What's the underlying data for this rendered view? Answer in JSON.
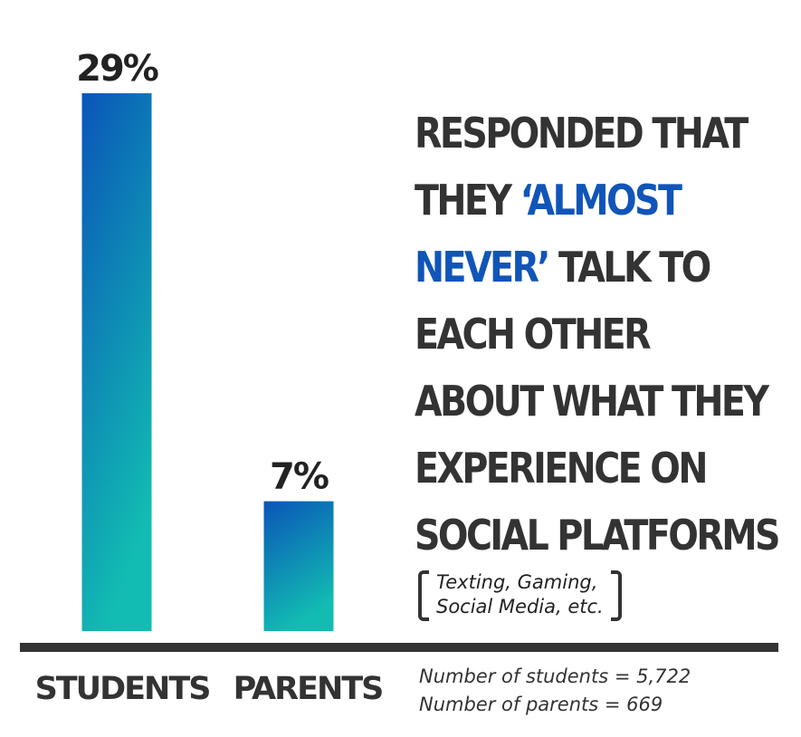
{
  "chart_data": {
    "type": "bar",
    "categories": [
      "STUDENTS",
      "PARENTS"
    ],
    "values": [
      29,
      7
    ],
    "value_labels": [
      "29%",
      "7%"
    ],
    "unit": "%",
    "ylim": [
      0,
      29
    ],
    "grid": false,
    "colors": {
      "bar_top": "#0a55b8",
      "bar_bottom": "#12bcb2",
      "baseline": "#333333",
      "highlight": "#1055b8"
    }
  },
  "headline": {
    "line1": "RESPONDED THAT",
    "line2_pre": "THEY ",
    "line2_hl": "‘ALMOST",
    "line3_hl": "NEVER’",
    "line3_post": " TALK TO",
    "line4": "EACH OTHER",
    "line5": "ABOUT WHAT THEY",
    "line6": "EXPERIENCE ON",
    "line7": "SOCIAL PLATFORMS"
  },
  "parenthetical": {
    "line1": "Texting, Gaming,",
    "line2": "Social Media, etc."
  },
  "notes": {
    "students": "Number of students = 5,722",
    "parents": "Number of parents = 669"
  }
}
